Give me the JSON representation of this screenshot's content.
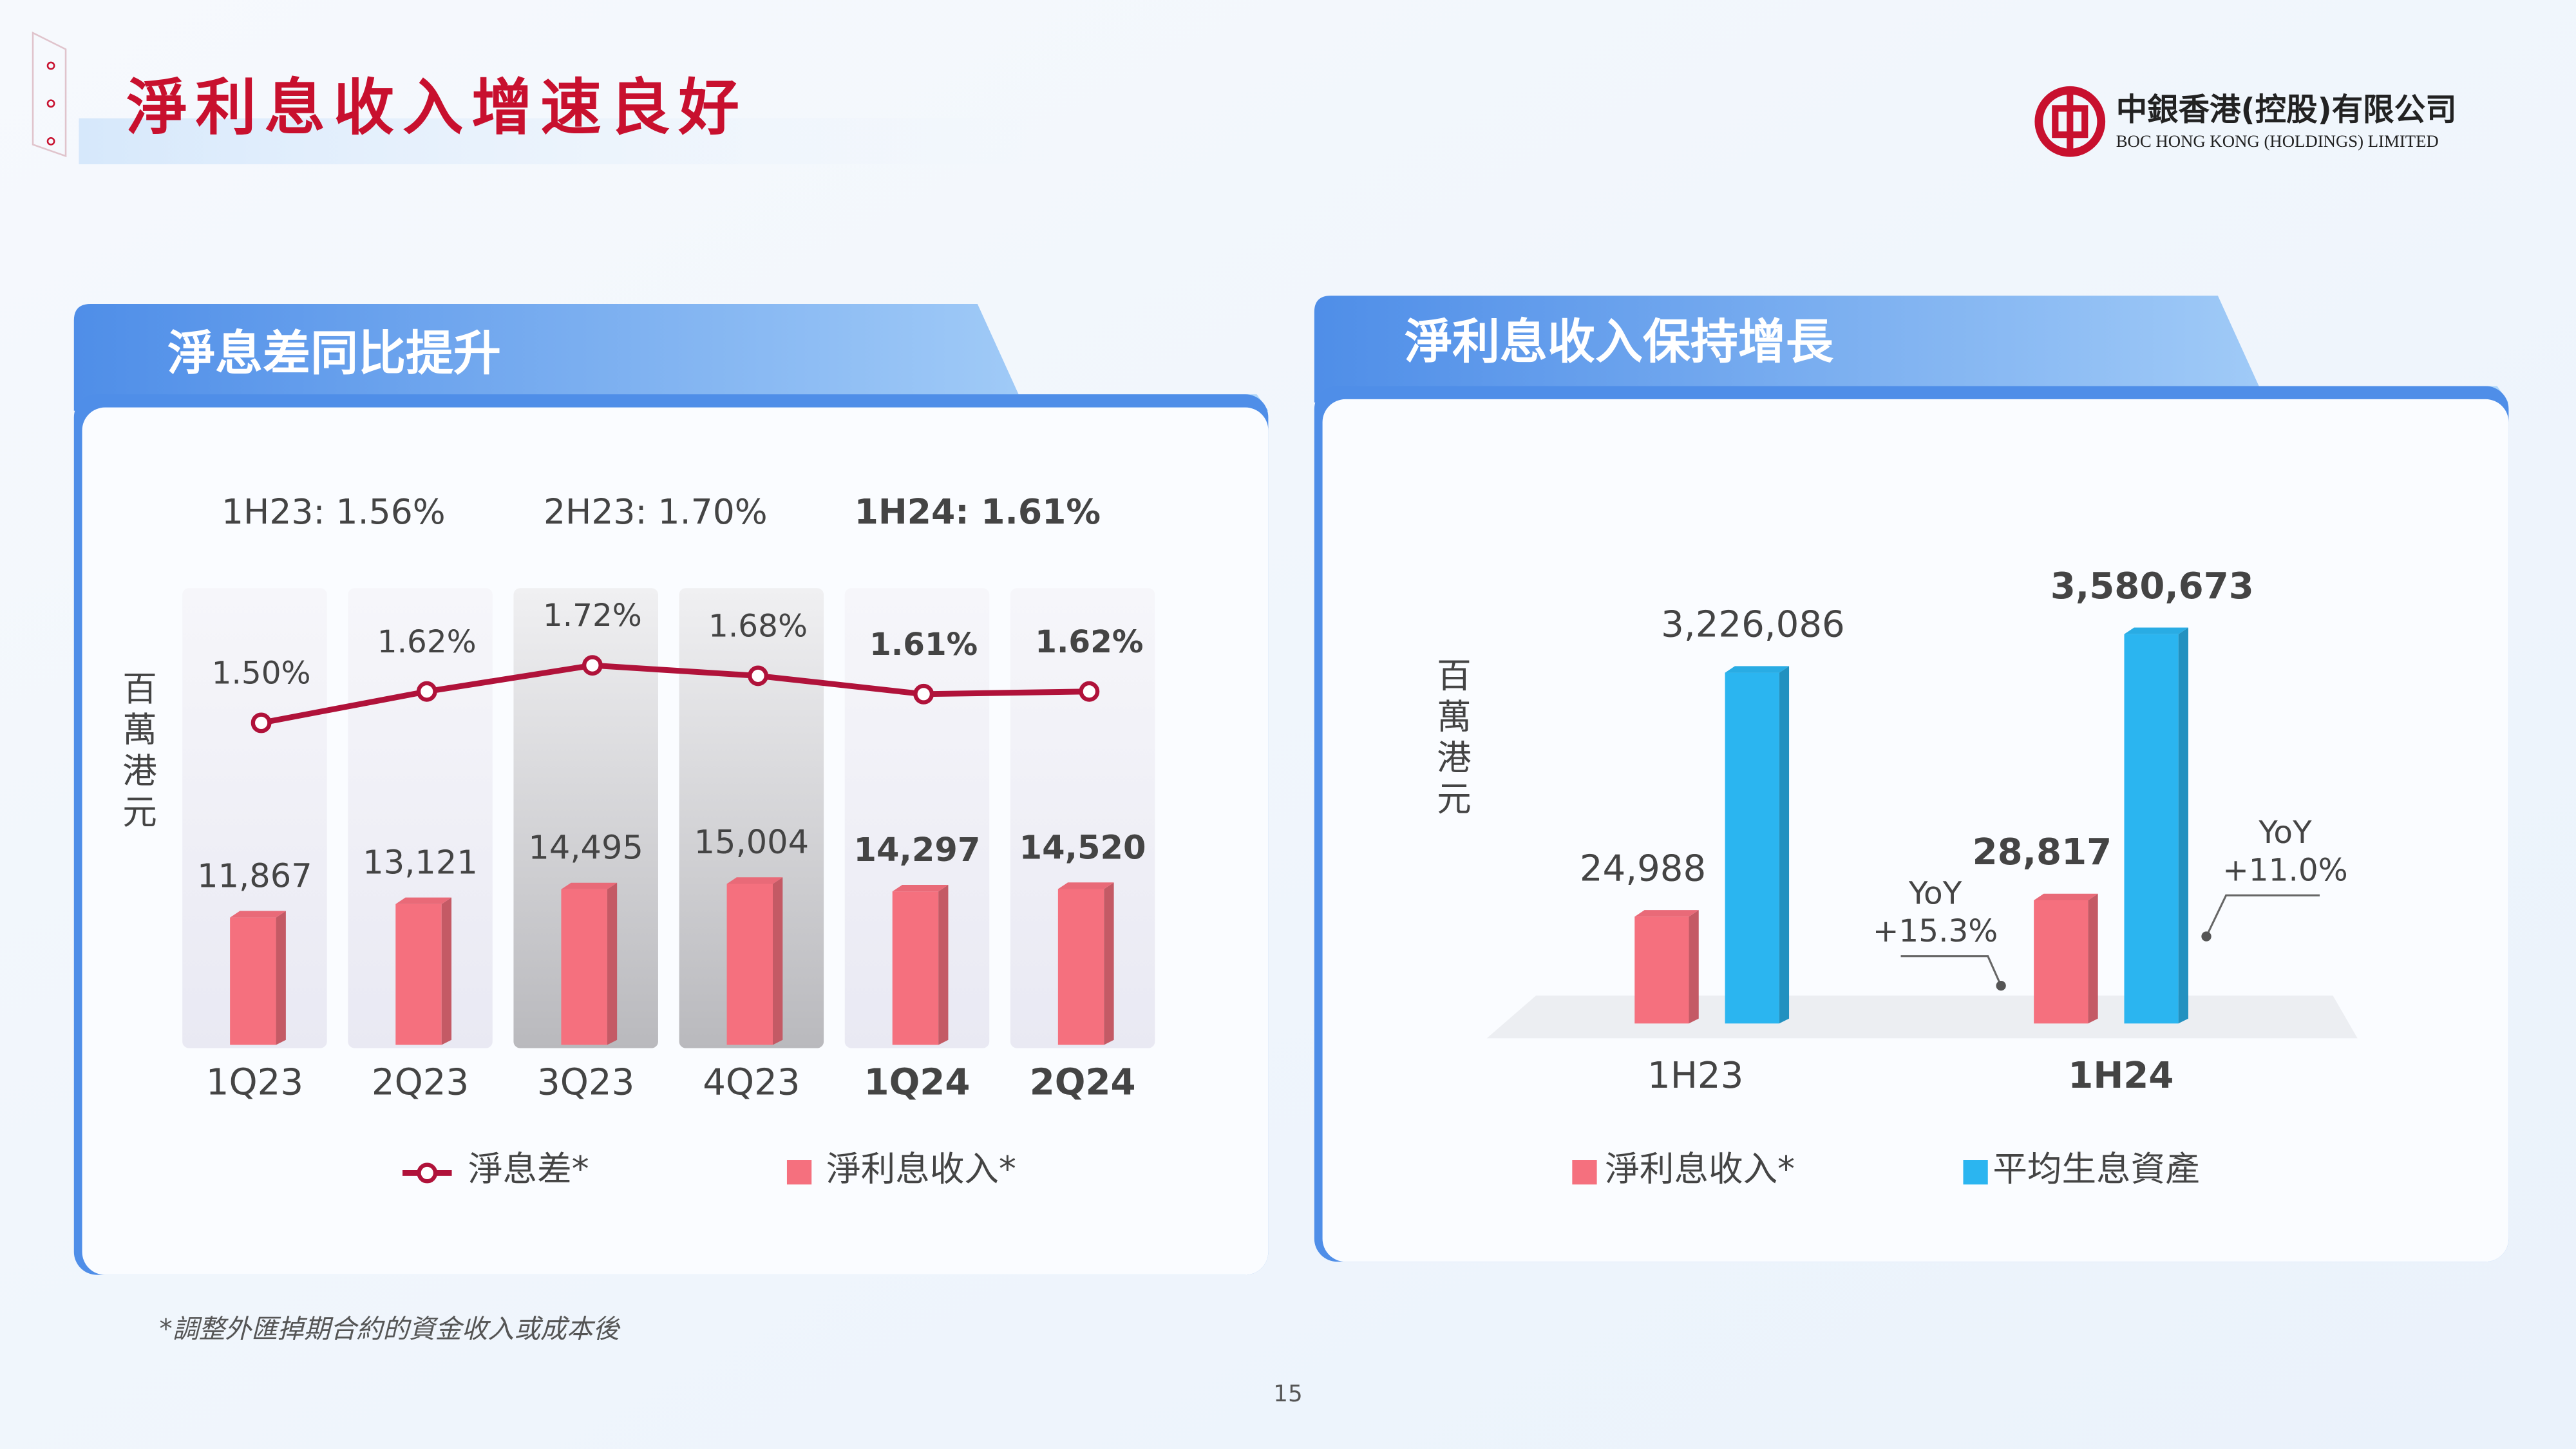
{
  "header": {
    "title": "淨利息收入增速良好",
    "logo_cn": "中銀香港(控股)有限公司",
    "logo_en": "BOC HONG KONG (HOLDINGS) LIMITED"
  },
  "chart_data": [
    {
      "type": "bar_line",
      "title": "淨息差同比提升",
      "y_label": "百萬港元",
      "period_labels": [
        "1H23: 1.56%",
        "2H23: 1.70%",
        "1H24: 1.61%"
      ],
      "categories": [
        "1Q23",
        "2Q23",
        "3Q23",
        "4Q23",
        "1Q24",
        "2Q24"
      ],
      "series": [
        {
          "name": "淨息差*",
          "type": "line",
          "color": "#b0123a",
          "values": [
            1.5,
            1.62,
            1.72,
            1.68,
            1.61,
            1.62
          ],
          "value_labels": [
            "1.50%",
            "1.62%",
            "1.72%",
            "1.68%",
            "1.61%",
            "1.62%"
          ]
        },
        {
          "name": "淨利息收入*",
          "type": "bar",
          "color": "#f5707e",
          "values": [
            11867,
            13121,
            14495,
            15004,
            14297,
            14520
          ],
          "value_labels": [
            "11,867",
            "13,121",
            "14,495",
            "15,004",
            "14,297",
            "14,520"
          ]
        }
      ]
    },
    {
      "type": "bar",
      "title": "淨利息收入保持增長",
      "y_label": "百萬港元",
      "categories": [
        "1H23",
        "1H24"
      ],
      "series": [
        {
          "name": "淨利息收入*",
          "color": "#f5707e",
          "values": [
            24988,
            28817
          ],
          "value_labels": [
            "24,988",
            "28,817"
          ]
        },
        {
          "name": "平均生息資產",
          "color": "#2bb5f0",
          "values": [
            3226086,
            3580673
          ],
          "value_labels": [
            "3,226,086",
            "3,580,673"
          ]
        }
      ],
      "annotations": [
        [
          "YoY",
          "+15.3%"
        ],
        [
          "YoY",
          "+11.0%"
        ]
      ]
    }
  ],
  "footnote": "*調整外匯掉期合約的資金收入或成本後",
  "page_number": "15"
}
